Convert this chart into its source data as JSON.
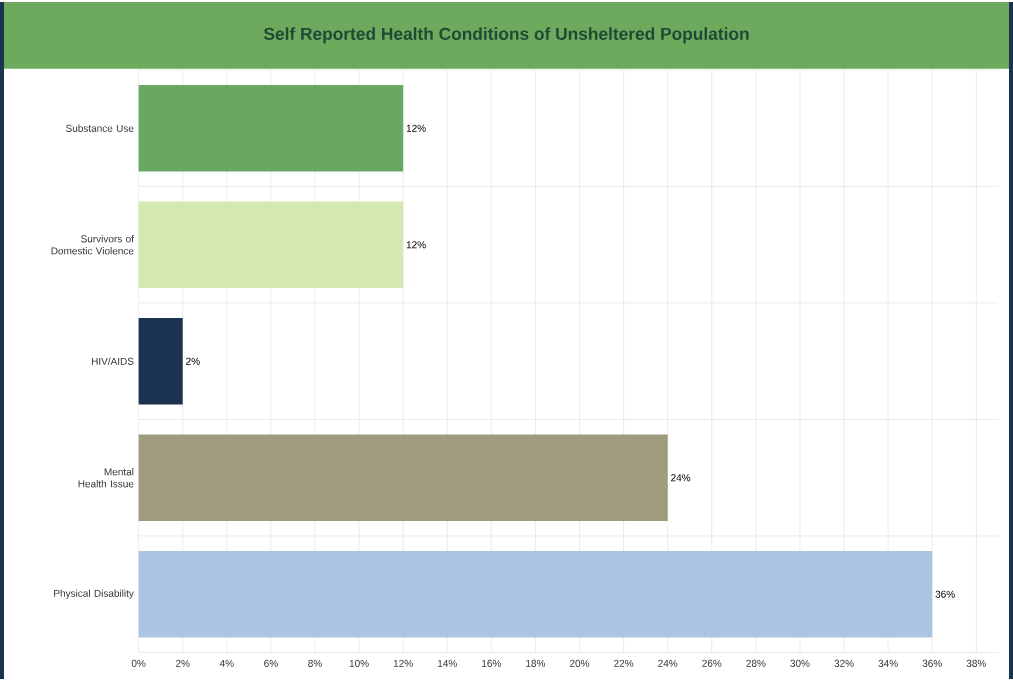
{
  "chart_data": {
    "type": "bar",
    "orientation": "horizontal",
    "title": "Self Reported Health Conditions of Unsheltered Population",
    "categories": [
      "Substance Use",
      "Survivors of Domestic Violence",
      "HIV/AIDS",
      "Mental Health Issue",
      "Physical Disability"
    ],
    "values": [
      12,
      12,
      2,
      24,
      36
    ],
    "value_labels": [
      "12%",
      "12%",
      "2%",
      "24%",
      "36%"
    ],
    "colors": [
      "#68a860",
      "#d4e8b2",
      "#1b3350",
      "#9e9c7c",
      "#aac6e2"
    ],
    "xlim": [
      0,
      39
    ],
    "xticks": [
      {
        "value": 0,
        "label": "0%"
      },
      {
        "value": 2,
        "label": "2%"
      },
      {
        "value": 4,
        "label": "4%"
      },
      {
        "value": 6,
        "label": "6%"
      },
      {
        "value": 8,
        "label": "8%"
      },
      {
        "value": 10,
        "label": "10%"
      },
      {
        "value": 12,
        "label": "12%"
      },
      {
        "value": 14,
        "label": "14%"
      },
      {
        "value": 16,
        "label": "16%"
      },
      {
        "value": 18,
        "label": "18%"
      },
      {
        "value": 20,
        "label": "20%"
      },
      {
        "value": 22,
        "label": "22%"
      },
      {
        "value": 24,
        "label": "24%"
      },
      {
        "value": 26,
        "label": "26%"
      },
      {
        "value": 28,
        "label": "28%"
      },
      {
        "value": 30,
        "label": "30%"
      },
      {
        "value": 32,
        "label": "32%"
      },
      {
        "value": 34,
        "label": "34%"
      },
      {
        "value": 36,
        "label": "36%"
      },
      {
        "value": 38,
        "label": "38%"
      }
    ],
    "grid": "x"
  }
}
